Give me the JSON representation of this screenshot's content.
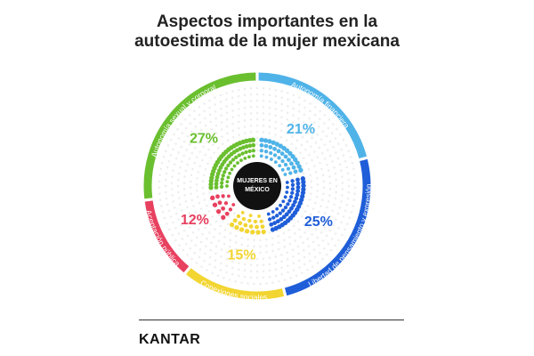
{
  "title_lines": [
    "Aspectos importantes en la",
    "autoestima de la mujer mexicana"
  ],
  "brand": "KANTAR",
  "chart_data": {
    "type": "pie",
    "title": "Aspectos importantes en la autoestima de la mujer mexicana",
    "center_label_lines": [
      "MUJERES EN",
      "MÉXICO"
    ],
    "unit": "%",
    "categories": [
      "Autonomía financiera",
      "Libertad de pensamiento y expresión",
      "Conexiones sociales",
      "Aceptación pública",
      "Autonomía sexual y corporal"
    ],
    "values": [
      21,
      25,
      15,
      12,
      27
    ],
    "colors": [
      "#4fb3e8",
      "#1f5ed8",
      "#f2d531",
      "#e8405f",
      "#6abf2f"
    ],
    "legend": "labels on outer ring",
    "grid": false
  }
}
